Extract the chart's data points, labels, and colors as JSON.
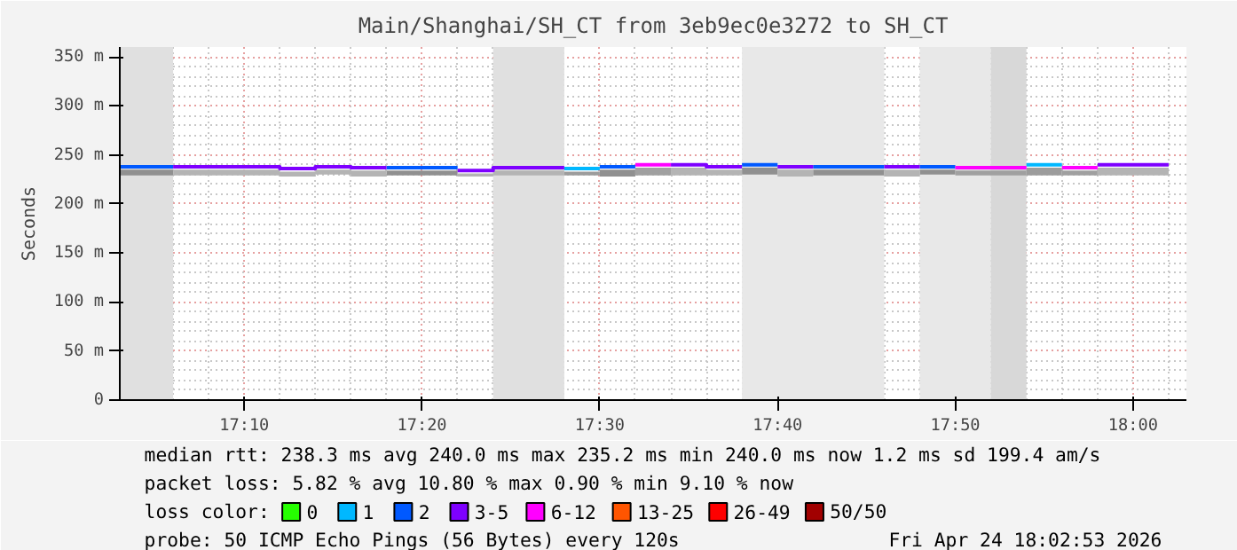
{
  "chart_data": {
    "type": "line",
    "title": "Main/Shanghai/SH_CT from 3eb9ec0e3272 to SH_CT",
    "ylabel": "Seconds",
    "xlim": [
      17.05,
      18.05
    ],
    "ylim": [
      0,
      360
    ],
    "xticks": [
      {
        "value": 17.1667,
        "label": "17:10"
      },
      {
        "value": 17.3333,
        "label": "17:20"
      },
      {
        "value": 17.5,
        "label": "17:30"
      },
      {
        "value": 17.6667,
        "label": "17:40"
      },
      {
        "value": 17.8333,
        "label": "17:50"
      },
      {
        "value": 18.0,
        "label": "18:00"
      }
    ],
    "yticks": [
      0,
      {
        "value": 50,
        "label": "50 m"
      },
      {
        "value": 100,
        "label": "100 m"
      },
      {
        "value": 150,
        "label": "150 m"
      },
      {
        "value": 200,
        "label": "200 m"
      },
      {
        "value": 250,
        "label": "250 m"
      },
      {
        "value": 300,
        "label": "300 m"
      },
      {
        "value": 350,
        "label": "350 m"
      }
    ],
    "grid": true,
    "legend": "bottom",
    "legend_title": "loss color:",
    "bands": [
      {
        "axis": "x",
        "from": 17.05,
        "to": 17.1,
        "color": "#e0e0e0"
      },
      {
        "axis": "x",
        "from": 17.4,
        "to": 17.4667,
        "color": "#e0e0e0"
      },
      {
        "axis": "x",
        "from": 17.6333,
        "to": 17.7667,
        "color": "#e8e8e8"
      },
      {
        "axis": "x",
        "from": 17.8,
        "to": 17.8667,
        "color": "#e8e8e8"
      },
      {
        "axis": "x",
        "from": 17.8667,
        "to": 17.9,
        "color": "#d8d8d8"
      }
    ],
    "series": [
      {
        "name": "0",
        "color": "#26ff00"
      },
      {
        "name": "1",
        "color": "#00b8ff",
        "x": [
          17.4667,
          17.5,
          null,
          17.9,
          17.9333
        ],
        "values": [
          236,
          236,
          null,
          240,
          240
        ],
        "lower": [
          229,
          229,
          null,
          229,
          229
        ],
        "upper": [
          233,
          233,
          null,
          237,
          237
        ]
      },
      {
        "name": "2",
        "color": "#0059ff",
        "x": [
          17.05,
          17.1,
          null,
          17.3,
          17.3667,
          null,
          17.5,
          17.5333,
          null,
          17.6333,
          17.6667,
          null,
          17.7,
          17.7667,
          null,
          17.8,
          17.8333
        ],
        "values": [
          238,
          238,
          null,
          237,
          237,
          null,
          238,
          238,
          null,
          240,
          240,
          null,
          238,
          238,
          null,
          238,
          238
        ],
        "lower": [
          229,
          229,
          null,
          229,
          229,
          null,
          228,
          228,
          null,
          230,
          230,
          null,
          229,
          229,
          null,
          230,
          230
        ],
        "upper": [
          235,
          235,
          null,
          234,
          234,
          null,
          235,
          235,
          null,
          237,
          237,
          null,
          235,
          235,
          null,
          235,
          235
        ]
      },
      {
        "name": "3-5",
        "color": "#7e00ff",
        "x": [
          17.1,
          17.2,
          17.2,
          17.2333,
          17.2333,
          17.2667,
          17.2667,
          17.3,
          null,
          17.3667,
          17.4,
          17.4,
          17.4667,
          null,
          17.5667,
          17.6,
          17.6,
          17.6333,
          null,
          17.6667,
          17.7,
          null,
          17.7667,
          17.8,
          null,
          17.9667,
          18.0333
        ],
        "values": [
          238,
          238,
          236,
          236,
          238,
          238,
          237,
          237,
          null,
          234,
          234,
          237,
          237,
          null,
          240,
          240,
          238,
          238,
          null,
          238,
          238,
          null,
          238,
          238,
          null,
          240,
          240
        ],
        "lower": [
          229,
          229,
          228,
          228,
          230,
          230,
          228,
          228,
          null,
          228,
          228,
          229,
          229,
          null,
          229,
          229,
          229,
          229,
          null,
          228,
          228,
          null,
          228,
          228,
          null,
          229,
          229
        ],
        "upper": [
          235,
          235,
          233,
          233,
          235,
          235,
          234,
          234,
          null,
          231,
          231,
          234,
          234,
          null,
          237,
          237,
          235,
          235,
          null,
          235,
          235,
          null,
          235,
          235,
          null,
          237,
          237
        ]
      },
      {
        "name": "6-12",
        "color": "#ff00ff",
        "x": [
          17.5333,
          17.5667,
          null,
          17.8333,
          17.9,
          null,
          17.9333,
          17.9667
        ],
        "values": [
          240,
          240,
          null,
          237,
          237,
          null,
          237,
          237
        ],
        "lower": [
          229,
          229,
          null,
          229,
          229,
          null,
          229,
          229
        ],
        "upper": [
          237,
          237,
          null,
          234,
          234,
          null,
          234,
          234
        ]
      },
      {
        "name": "13-25",
        "color": "#ff5500"
      },
      {
        "name": "26-49",
        "color": "#ff0000"
      },
      {
        "name": "50/50",
        "color": "#a10000"
      }
    ],
    "annotations": [
      "median rtt:  238.3 ms avg  240.0 ms max  235.2 ms min  240.0 ms now  1.2 ms sd  199.4   am/s",
      "packet loss: 5.82 % avg  10.80 % max  0.90 % min  9.10 % now",
      "probe:       50 ICMP Echo Pings (56 Bytes) every 120s",
      "Fri Apr 24 18:02:53 2026"
    ]
  }
}
